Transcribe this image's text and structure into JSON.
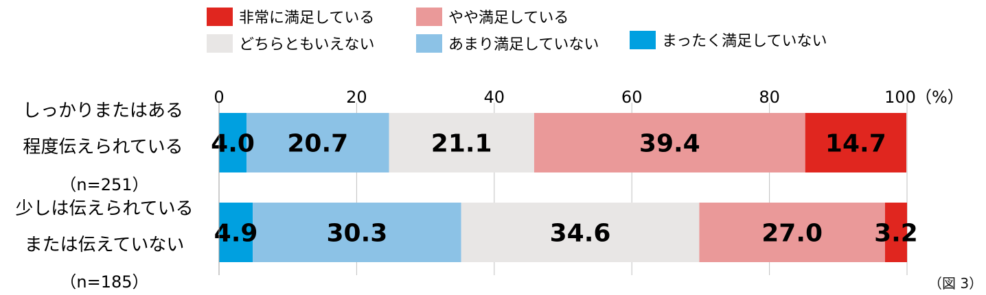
{
  "chart_data": {
    "type": "bar",
    "orientation": "horizontal",
    "stacked": true,
    "unit": "（%）",
    "xlim": [
      0,
      100
    ],
    "ticks": [
      0,
      20,
      40,
      60,
      80,
      100
    ],
    "grid": true,
    "legend_position": "top",
    "categories": [
      {
        "lines": [
          "しっかりまたはある",
          "程度伝えられている"
        ],
        "n": "（n=251）"
      },
      {
        "lines": [
          "少しは伝えられている",
          "または伝えていない"
        ],
        "n": "（n=185）"
      }
    ],
    "series": [
      {
        "name": "まったく満足していない",
        "color": "#00A0E0",
        "values": [
          4.0,
          4.9
        ],
        "labels": [
          "4.0",
          "4.9"
        ]
      },
      {
        "name": "あまり満足していない",
        "color": "#8CC2E6",
        "values": [
          20.7,
          30.3
        ],
        "labels": [
          "20.7",
          "30.3"
        ]
      },
      {
        "name": "どちらともいえない",
        "color": "#E8E6E5",
        "values": [
          21.1,
          34.6
        ],
        "labels": [
          "21.1",
          "34.6"
        ]
      },
      {
        "name": "やや満足している",
        "color": "#EA9999",
        "values": [
          39.4,
          27.0
        ],
        "labels": [
          "39.4",
          "27.0"
        ]
      },
      {
        "name": "非常に満足している",
        "color": "#E0261F",
        "values": [
          14.7,
          3.2
        ],
        "labels": [
          "14.7",
          "3.2"
        ]
      }
    ],
    "legend_order": [
      "非常に満足している",
      "やや満足している",
      "どちらともいえない",
      "あまり満足していない",
      "まったく満足していない"
    ]
  },
  "figure_ref": "（図 3）"
}
